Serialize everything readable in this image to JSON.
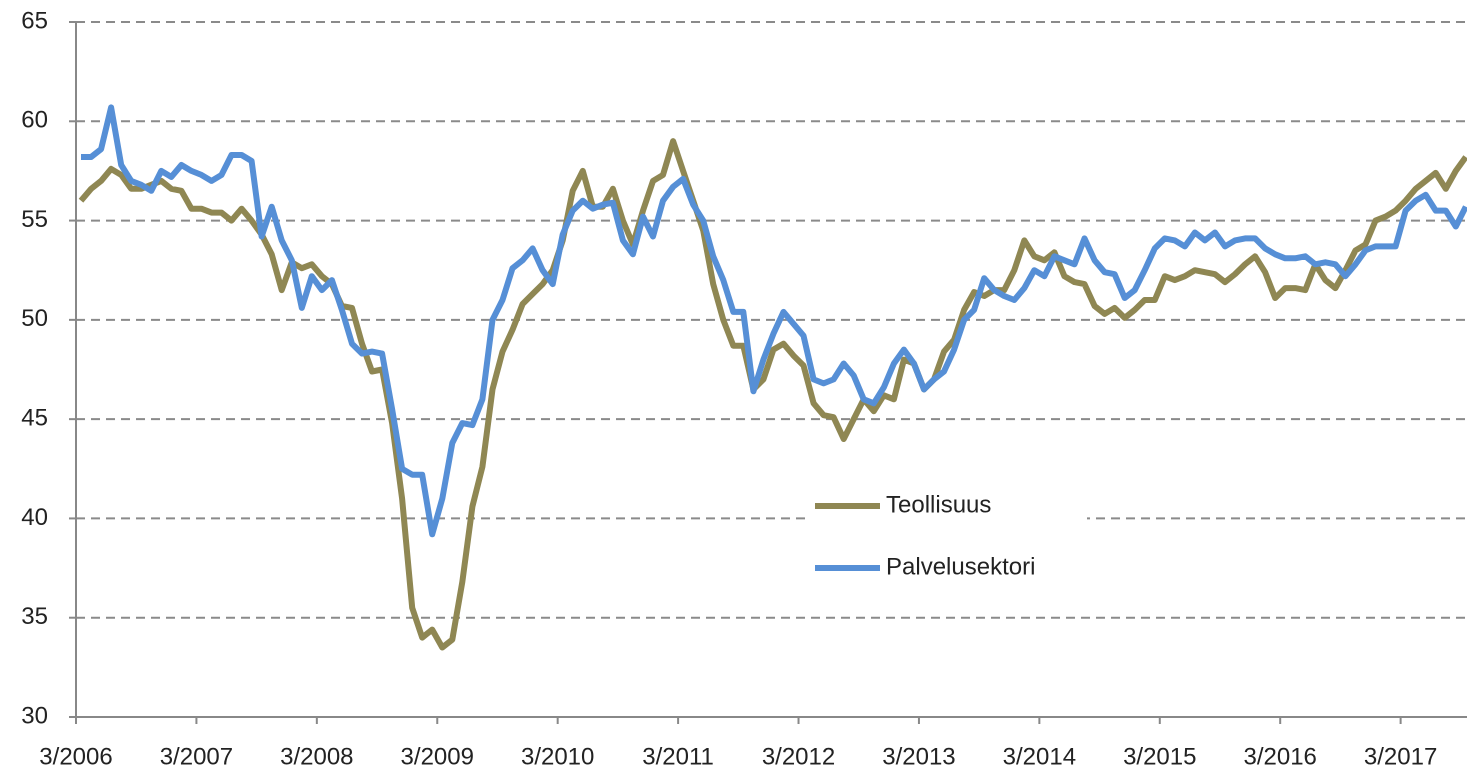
{
  "chart_data": {
    "type": "line",
    "categories": [
      "3/2006",
      null,
      null,
      null,
      null,
      null,
      null,
      null,
      null,
      null,
      null,
      null,
      "3/2007",
      null,
      null,
      null,
      null,
      null,
      null,
      null,
      null,
      null,
      null,
      null,
      "3/2008",
      null,
      null,
      null,
      null,
      null,
      null,
      null,
      null,
      null,
      null,
      null,
      "3/2009",
      null,
      null,
      null,
      null,
      null,
      null,
      null,
      null,
      null,
      null,
      null,
      "3/2010",
      null,
      null,
      null,
      null,
      null,
      null,
      null,
      null,
      null,
      null,
      null,
      "3/2011",
      null,
      null,
      null,
      null,
      null,
      null,
      null,
      null,
      null,
      null,
      null,
      "3/2012",
      null,
      null,
      null,
      null,
      null,
      null,
      null,
      null,
      null,
      null,
      null,
      "3/2013",
      null,
      null,
      null,
      null,
      null,
      null,
      null,
      null,
      null,
      null,
      null,
      "3/2014",
      null,
      null,
      null,
      null,
      null,
      null,
      null,
      null,
      null,
      null,
      null,
      "3/2015",
      null,
      null,
      null,
      null,
      null,
      null,
      null,
      null,
      null,
      null,
      null,
      "3/2016",
      null,
      null,
      null,
      null,
      null,
      null,
      null,
      null,
      null,
      null,
      null,
      "3/2017",
      null,
      null,
      null,
      null,
      null,
      null
    ],
    "series": [
      {
        "name": "Teollisuus",
        "color": "#8f8753",
        "values": [
          56.0,
          56.6,
          57.0,
          57.6,
          57.3,
          56.6,
          56.6,
          56.8,
          57.0,
          56.6,
          56.5,
          55.6,
          55.6,
          55.4,
          55.4,
          55.0,
          55.6,
          55.0,
          54.3,
          53.3,
          51.5,
          52.9,
          52.6,
          52.8,
          52.2,
          51.8,
          50.7,
          50.6,
          48.8,
          47.4,
          47.5,
          44.8,
          41.0,
          35.5,
          34.0,
          34.4,
          33.5,
          33.9,
          36.8,
          40.6,
          42.6,
          46.5,
          48.4,
          49.5,
          50.8,
          51.3,
          51.8,
          52.5,
          54.0,
          56.5,
          57.5,
          55.7,
          55.7,
          56.6,
          55.0,
          53.8,
          55.5,
          57.0,
          57.3,
          59.0,
          57.5,
          56.0,
          54.5,
          51.8,
          50.0,
          48.7,
          48.7,
          46.5,
          47.0,
          48.5,
          48.8,
          48.2,
          47.7,
          45.8,
          45.2,
          45.1,
          44.0,
          45.0,
          46.0,
          45.4,
          46.2,
          46.0,
          48.0,
          47.8,
          46.5,
          47.0,
          48.4,
          49.0,
          50.5,
          51.4,
          51.2,
          51.5,
          51.5,
          52.5,
          54.0,
          53.2,
          53.0,
          53.4,
          52.2,
          51.9,
          51.8,
          50.7,
          50.3,
          50.6,
          50.1,
          50.5,
          51.0,
          51.0,
          52.2,
          52.0,
          52.2,
          52.5,
          52.4,
          52.3,
          51.9,
          52.3,
          52.8,
          53.2,
          52.4,
          51.1,
          51.6,
          51.6,
          51.5,
          52.8,
          52.0,
          51.6,
          52.5,
          53.5,
          53.8,
          55.0,
          55.2,
          55.5,
          56.0,
          56.6,
          57.0,
          57.4,
          56.6,
          57.5,
          58.2
        ]
      },
      {
        "name": "Palvelusektori",
        "color": "#568fd6",
        "values": [
          58.2,
          58.2,
          58.6,
          60.7,
          57.8,
          57.0,
          56.8,
          56.5,
          57.5,
          57.2,
          57.8,
          57.5,
          57.3,
          57.0,
          57.3,
          58.3,
          58.3,
          58.0,
          54.2,
          55.7,
          54.0,
          53.0,
          50.6,
          52.2,
          51.5,
          52.0,
          50.5,
          48.8,
          48.3,
          48.4,
          48.3,
          45.5,
          42.5,
          42.2,
          42.2,
          39.2,
          41.0,
          43.8,
          44.8,
          44.7,
          46.0,
          50.0,
          51.0,
          52.6,
          53.0,
          53.6,
          52.5,
          51.8,
          54.3,
          55.5,
          56.0,
          55.6,
          55.8,
          55.9,
          54.0,
          53.3,
          55.2,
          54.2,
          56.0,
          56.7,
          57.1,
          55.8,
          55.0,
          53.2,
          52.0,
          50.4,
          50.4,
          46.4,
          48.0,
          49.3,
          50.4,
          49.8,
          49.2,
          47.0,
          46.8,
          47.0,
          47.8,
          47.2,
          46.0,
          45.8,
          46.6,
          47.8,
          48.5,
          47.8,
          46.5,
          47.0,
          47.4,
          48.5,
          50.0,
          50.5,
          52.1,
          51.5,
          51.2,
          51.0,
          51.6,
          52.5,
          52.2,
          53.2,
          53.0,
          52.8,
          54.1,
          53.0,
          52.4,
          52.3,
          51.1,
          51.5,
          52.5,
          53.6,
          54.1,
          54.0,
          53.7,
          54.4,
          54.0,
          54.4,
          53.7,
          54.0,
          54.1,
          54.1,
          53.6,
          53.3,
          53.1,
          53.1,
          53.2,
          52.8,
          52.9,
          52.8,
          52.2,
          52.8,
          53.5,
          53.7,
          53.7,
          53.7,
          55.5,
          56.0,
          56.3,
          55.5,
          55.5,
          54.7,
          55.7
        ]
      }
    ],
    "ylim": [
      30,
      65
    ],
    "yticks": [
      30,
      35,
      40,
      45,
      50,
      55,
      60,
      65
    ],
    "grid": true
  }
}
